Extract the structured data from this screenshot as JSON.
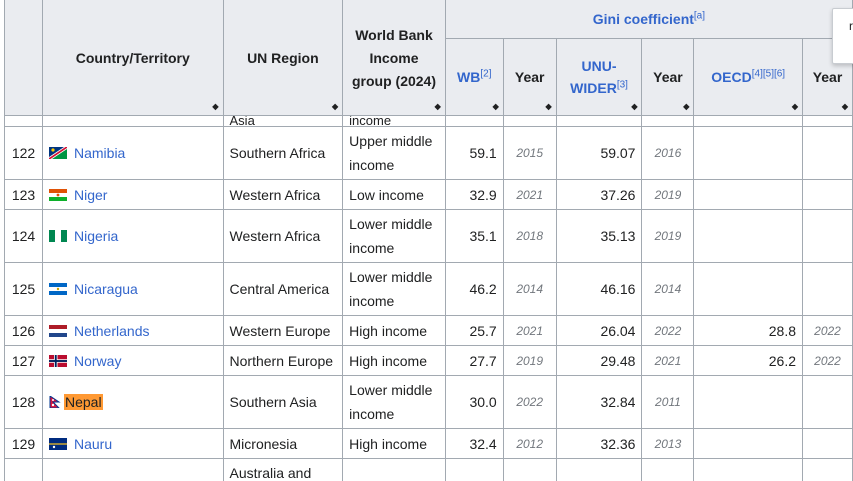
{
  "headers": {
    "country": "Country/Territory",
    "region": "UN Region",
    "income": "World Bank Income group (2024)",
    "gini_group": "Gini coefficient",
    "gini_note": "[a]",
    "wb": "WB",
    "wb_ref": "[2]",
    "year": "Year",
    "unu": "UNU-WIDER",
    "unu_ref": "[3]",
    "oecd": "OECD",
    "oecd_ref": "[4][5][6]",
    "sort_glyph": "◆"
  },
  "cut_text": {
    "region": "Asia",
    "income": "income"
  },
  "rows": [
    {
      "rank": "122",
      "country": "Namibia",
      "region": "Southern Africa",
      "income": "Upper middle income",
      "wb": "59.1",
      "wb_year": "2015",
      "unu": "59.07",
      "unu_year": "2016",
      "oecd": "",
      "oecd_year": "",
      "flag": "namibia"
    },
    {
      "rank": "123",
      "country": "Niger",
      "region": "Western Africa",
      "income": "Low income",
      "wb": "32.9",
      "wb_year": "2021",
      "unu": "37.26",
      "unu_year": "2019",
      "oecd": "",
      "oecd_year": "",
      "flag": "niger"
    },
    {
      "rank": "124",
      "country": "Nigeria",
      "region": "Western Africa",
      "income": "Lower middle income",
      "wb": "35.1",
      "wb_year": "2018",
      "unu": "35.13",
      "unu_year": "2019",
      "oecd": "",
      "oecd_year": "",
      "flag": "nigeria"
    },
    {
      "rank": "125",
      "country": "Nicaragua",
      "region": "Central America",
      "income": "Lower middle income",
      "wb": "46.2",
      "wb_year": "2014",
      "unu": "46.16",
      "unu_year": "2014",
      "oecd": "",
      "oecd_year": "",
      "flag": "nicaragua"
    },
    {
      "rank": "126",
      "country": "Netherlands",
      "region": "Western Europe",
      "income": "High income",
      "wb": "25.7",
      "wb_year": "2021",
      "unu": "26.04",
      "unu_year": "2022",
      "oecd": "28.8",
      "oecd_year": "2022",
      "flag": "netherlands"
    },
    {
      "rank": "127",
      "country": "Norway",
      "region": "Northern Europe",
      "income": "High income",
      "wb": "27.7",
      "wb_year": "2019",
      "unu": "29.48",
      "unu_year": "2021",
      "oecd": "26.2",
      "oecd_year": "2022",
      "flag": "norway"
    },
    {
      "rank": "128",
      "country": "Nepal",
      "region": "Southern Asia",
      "income": "Lower middle income",
      "wb": "30.0",
      "wb_year": "2022",
      "unu": "32.84",
      "unu_year": "2011",
      "oecd": "",
      "oecd_year": "",
      "flag": "nepal",
      "highlight": true
    },
    {
      "rank": "129",
      "country": "Nauru",
      "region": "Micronesia",
      "income": "High income",
      "wb": "32.4",
      "wb_year": "2012",
      "unu": "32.36",
      "unu_year": "2013",
      "oecd": "",
      "oecd_year": "",
      "flag": "nauru"
    },
    {
      "rank": "",
      "country": "",
      "region": "Australia and",
      "income": "",
      "wb": "",
      "wb_year": "",
      "unu": "",
      "unu_year": "",
      "oecd": "",
      "oecd_year": "",
      "flag": ""
    }
  ],
  "popup_text": "r"
}
